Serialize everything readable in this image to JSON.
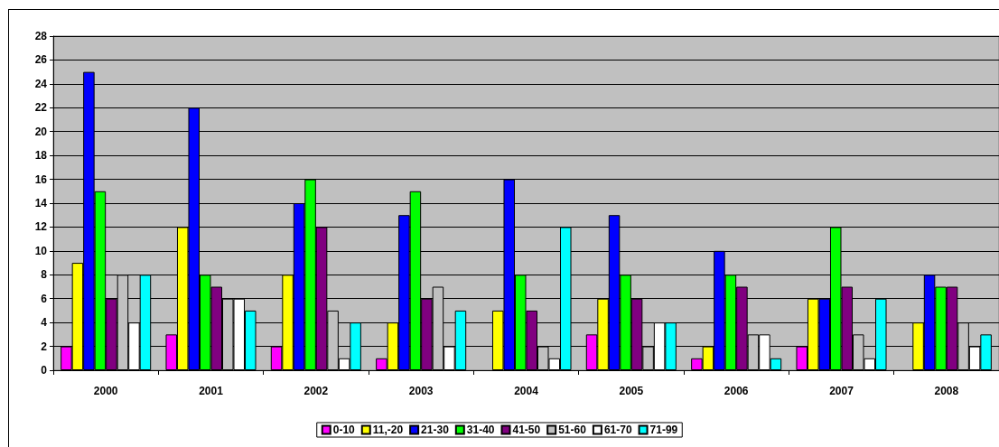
{
  "chart_data": {
    "type": "bar",
    "categories": [
      "2000",
      "2001",
      "2002",
      "2003",
      "2004",
      "2005",
      "2006",
      "2007",
      "2008"
    ],
    "series": [
      {
        "name": "0-10",
        "color": "#ff00ff",
        "values": [
          2,
          3,
          2,
          1,
          null,
          3,
          1,
          2,
          null
        ]
      },
      {
        "name": "11,-20",
        "color": "#ffff00",
        "values": [
          9,
          12,
          8,
          4,
          5,
          6,
          2,
          6,
          4
        ]
      },
      {
        "name": "21-30",
        "color": "#0000ff",
        "values": [
          25,
          22,
          14,
          13,
          16,
          13,
          10,
          6,
          8
        ]
      },
      {
        "name": "31-40",
        "color": "#00ff00",
        "values": [
          15,
          8,
          16,
          15,
          8,
          8,
          8,
          12,
          7
        ]
      },
      {
        "name": "41-50",
        "color": "#800080",
        "values": [
          6,
          7,
          12,
          6,
          5,
          6,
          7,
          7,
          7
        ]
      },
      {
        "name": "51-60",
        "color": "#c0c0c0",
        "values": [
          8,
          6,
          5,
          7,
          2,
          2,
          3,
          3,
          4
        ]
      },
      {
        "name": "61-70",
        "color": "#ffffff",
        "values": [
          4,
          6,
          1,
          2,
          1,
          4,
          3,
          1,
          2
        ]
      },
      {
        "name": "71-99",
        "color": "#00ffff",
        "values": [
          8,
          5,
          4,
          5,
          12,
          4,
          1,
          6,
          3
        ]
      }
    ],
    "ylim": [
      0,
      28
    ],
    "yticks": [
      0,
      2,
      4,
      6,
      8,
      10,
      12,
      14,
      16,
      18,
      20,
      22,
      24,
      26,
      28
    ],
    "grid": "y",
    "legend": "bottom"
  }
}
